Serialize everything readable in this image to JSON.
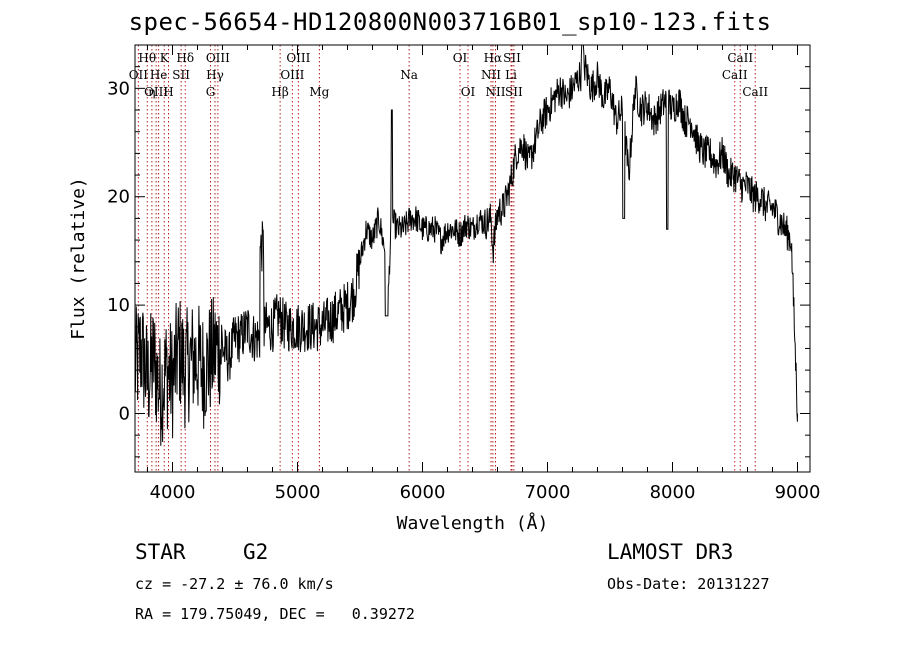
{
  "title": "spec-56654-HD120800N003716B01_sp10-123.fits",
  "info": {
    "class": "STAR",
    "subclass": "G2",
    "survey": "LAMOST DR3",
    "cz": "cz = -27.2 ± 76.0 km/s",
    "obs_date": "Obs-Date: 20131227",
    "coords": "RA = 179.75049, DEC =   0.39272"
  },
  "colors": {
    "axis": "#000000",
    "line_marker": "#b22222",
    "spectrum": "#000000"
  },
  "chart_data": {
    "type": "line",
    "title": "spec-56654-HD120800N003716B01_sp10-123.fits",
    "xlabel": "Wavelength (Å)",
    "ylabel": "Flux (relative)",
    "xlim": [
      3700,
      9100
    ],
    "ylim": [
      -5.4,
      34.0
    ],
    "x_ticks": [
      4000,
      5000,
      6000,
      7000,
      8000,
      9000
    ],
    "y_ticks": [
      0,
      10,
      20,
      30
    ],
    "y_tick_labels": [
      "0",
      "10",
      "20",
      "30"
    ],
    "y_tick_overlap_label": "30",
    "series": [
      {
        "name": "flux",
        "x": [
          3700,
          3750,
          3800,
          3850,
          3900,
          3950,
          4000,
          4050,
          4100,
          4150,
          4200,
          4250,
          4300,
          4350,
          4400,
          4450,
          4500,
          4550,
          4600,
          4650,
          4700,
          4750,
          4800,
          4850,
          4900,
          4950,
          5000,
          5050,
          5100,
          5150,
          5200,
          5250,
          5300,
          5350,
          5400,
          5450,
          5500,
          5550,
          5600,
          5650,
          5700,
          5720,
          5750,
          5800,
          5850,
          5900,
          5950,
          6000,
          6050,
          6100,
          6150,
          6200,
          6250,
          6300,
          6350,
          6400,
          6450,
          6500,
          6550,
          6563,
          6600,
          6650,
          6700,
          6750,
          6800,
          6850,
          6900,
          6950,
          7000,
          7050,
          7100,
          7150,
          7200,
          7250,
          7300,
          7350,
          7400,
          7450,
          7500,
          7550,
          7600,
          7650,
          7700,
          7750,
          7800,
          7850,
          7900,
          7950,
          8000,
          8050,
          8100,
          8150,
          8200,
          8250,
          8300,
          8350,
          8400,
          8450,
          8500,
          8550,
          8600,
          8650,
          8700,
          8750,
          8800,
          8850,
          8900,
          8950,
          9000
        ],
        "values": [
          4,
          6,
          3,
          5,
          2,
          4,
          3,
          6,
          4,
          5,
          5,
          4,
          5,
          6,
          6,
          5,
          7,
          7,
          8,
          7,
          7,
          8,
          8,
          9,
          8,
          8,
          8,
          8,
          8,
          8,
          8,
          8.5,
          9,
          9.5,
          10,
          11,
          14,
          17,
          16,
          18,
          15,
          9,
          18,
          17,
          17,
          18,
          18,
          17,
          17,
          17,
          16,
          17,
          17,
          16.5,
          17.5,
          17,
          18,
          17.5,
          18,
          15,
          18.5,
          19,
          21,
          24,
          25,
          23,
          25,
          27,
          28,
          29,
          30,
          29,
          30,
          31,
          32,
          30,
          31,
          29,
          30,
          27,
          28,
          22,
          30,
          28,
          28.5,
          27,
          28,
          29,
          28,
          29,
          27,
          27,
          25,
          24,
          24,
          23,
          24,
          22,
          22,
          21,
          21,
          20,
          20,
          19,
          19,
          18,
          17,
          16,
          0
        ],
        "description": "Noisy G2 stellar continuum: low blue flux rising through a break near 5500 A, peak near 7300 A, declining toward the red."
      }
    ],
    "lines": [
      {
        "name": "Hθ",
        "x": 3798,
        "row": 0
      },
      {
        "name": "K",
        "x": 3934,
        "row": 0
      },
      {
        "name": "Hδ",
        "x": 4102,
        "row": 0
      },
      {
        "name": "OII",
        "x": 3727,
        "row": 1
      },
      {
        "name": "He",
        "x": 3889,
        "row": 1
      },
      {
        "name": "SII",
        "x": 4069,
        "row": 1
      },
      {
        "name": "OIII",
        "x": 3869,
        "row": 2
      },
      {
        "name": "η",
        "x": 3835,
        "row": 2
      },
      {
        "name": "H",
        "x": 3968,
        "row": 2
      },
      {
        "name": "OIII",
        "x": 4363,
        "row": 0
      },
      {
        "name": "Hγ",
        "x": 4340,
        "row": 1
      },
      {
        "name": "G",
        "x": 4304,
        "row": 2
      },
      {
        "name": "OIII",
        "x": 5007,
        "row": 0
      },
      {
        "name": "OIII",
        "x": 4959,
        "row": 1
      },
      {
        "name": "Hβ",
        "x": 4861,
        "row": 2
      },
      {
        "name": "Mg",
        "x": 5175,
        "row": 2
      },
      {
        "name": "Na",
        "x": 5893,
        "row": 1
      },
      {
        "name": "OI",
        "x": 6300,
        "row": 0
      },
      {
        "name": "OI",
        "x": 6364,
        "row": 2
      },
      {
        "name": "Hα",
        "x": 6563,
        "row": 0
      },
      {
        "name": "SII",
        "x": 6716,
        "row": 0
      },
      {
        "name": "NII",
        "x": 6548,
        "row": 1
      },
      {
        "name": "Li",
        "x": 6708,
        "row": 1
      },
      {
        "name": "NII",
        "x": 6584,
        "row": 2
      },
      {
        "name": "SII",
        "x": 6731,
        "row": 2
      },
      {
        "name": "CaII",
        "x": 8542,
        "row": 0
      },
      {
        "name": "CaII",
        "x": 8498,
        "row": 1
      },
      {
        "name": "CaII",
        "x": 8662,
        "row": 2
      }
    ]
  }
}
